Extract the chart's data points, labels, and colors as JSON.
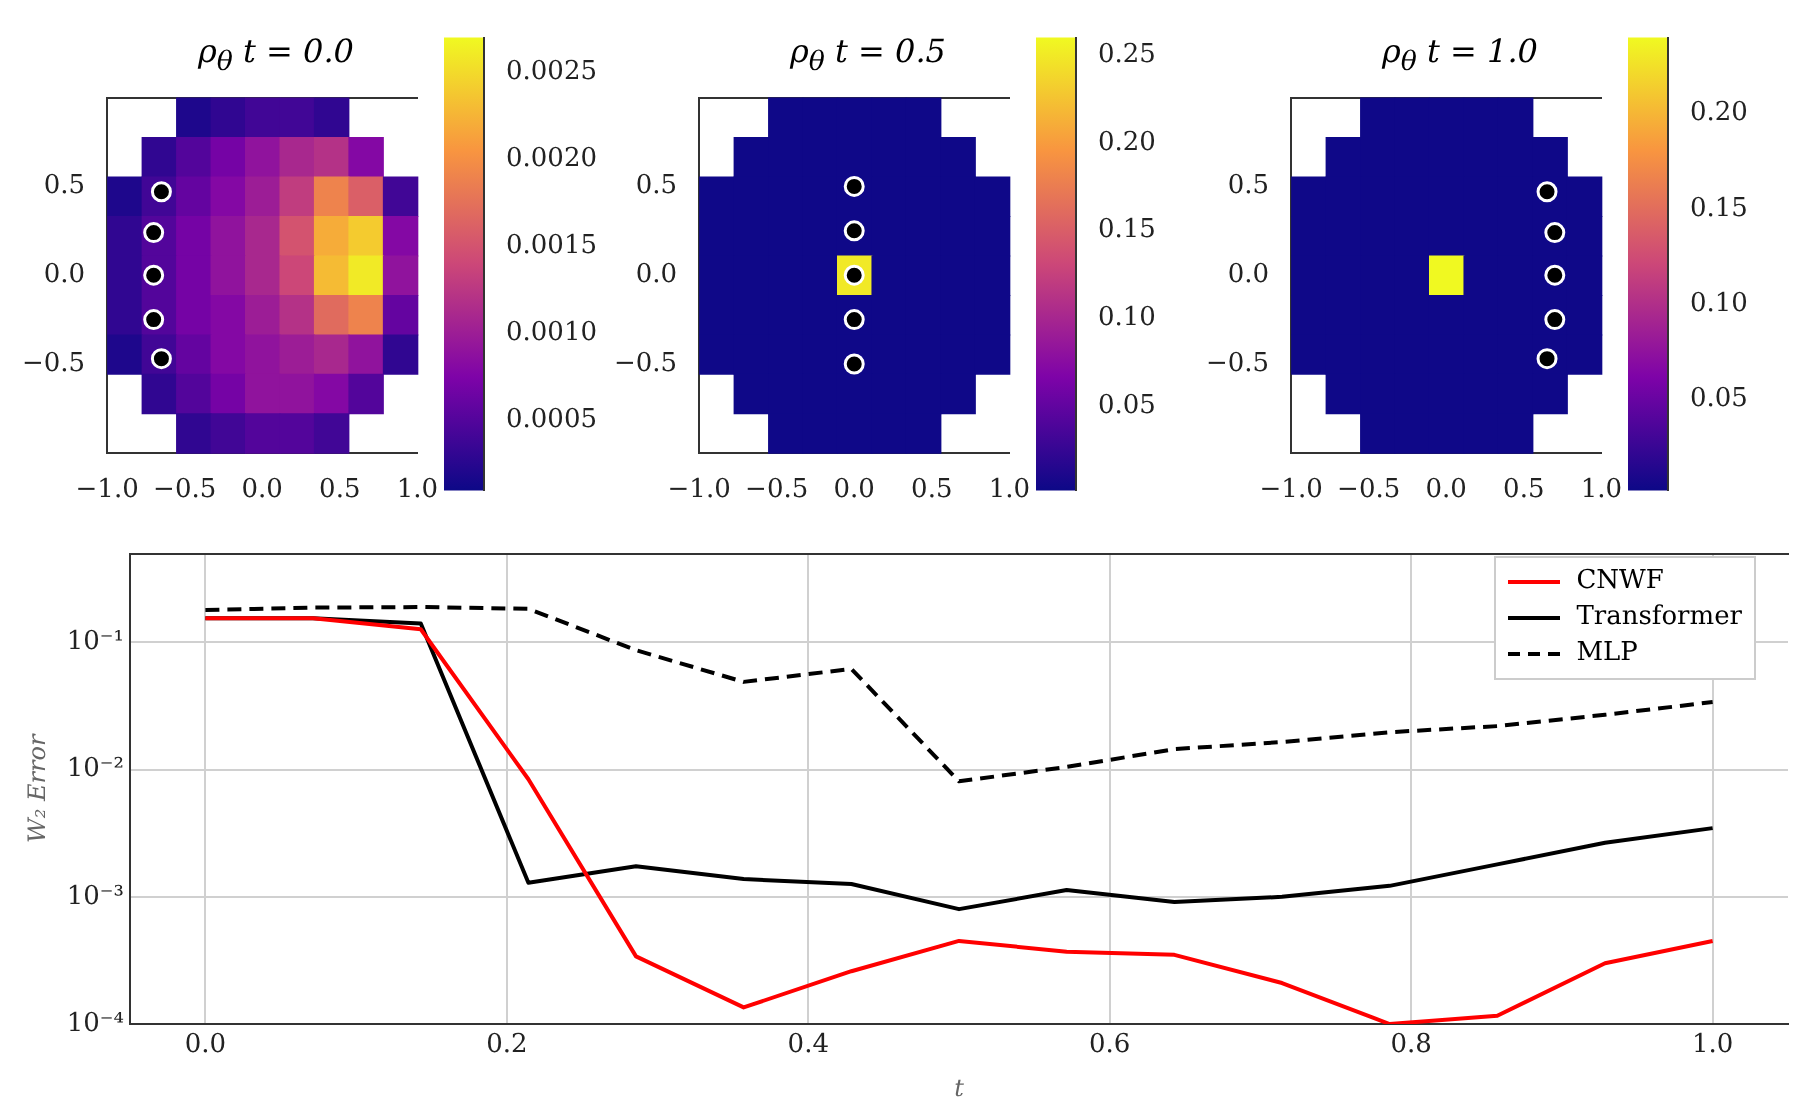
{
  "chart_data": [
    {
      "type": "heatmap",
      "title": "ρ$_{θ}$ t = 0.0",
      "xlim": [
        -1,
        1
      ],
      "xticks": [
        {
          "value": -1,
          "label": "−1.0"
        },
        {
          "value": -0.5,
          "label": "−0.5"
        },
        {
          "value": 0,
          "label": "0.0"
        },
        {
          "value": 0.5,
          "label": "0.5"
        },
        {
          "value": 1,
          "label": "1.0"
        }
      ],
      "ylim": [
        -1,
        1
      ],
      "yticks": [
        {
          "value": -0.5,
          "label": "−0.5"
        },
        {
          "value": 0,
          "label": "0.0"
        },
        {
          "value": 0.5,
          "label": "0.5"
        }
      ],
      "clim": [
        0.0001,
        0.0027
      ],
      "cticks": [
        0.0005,
        {
          "value": 0.001,
          "label": "0.0010"
        },
        0.0015,
        {
          "value": 0.002,
          "label": "0.0020"
        },
        0.0025
      ],
      "cells": [
        [
          null,
          null,
          0.0002,
          0.0003,
          0.0004,
          0.0004,
          0.0003,
          null,
          null
        ],
        [
          null,
          0.0003,
          0.0005,
          0.0007,
          0.0009,
          0.0011,
          0.0012,
          0.0008,
          null
        ],
        [
          0.0002,
          0.0004,
          0.0006,
          0.0008,
          0.001,
          0.0013,
          0.0019,
          0.0016,
          0.0004
        ],
        [
          0.0003,
          0.0005,
          0.0007,
          0.0009,
          0.0011,
          0.0015,
          0.0022,
          0.0024,
          0.0008
        ],
        [
          0.0003,
          0.0005,
          0.0007,
          0.0009,
          0.0011,
          0.0014,
          0.0023,
          0.0026,
          0.0009
        ],
        [
          0.0003,
          0.0005,
          0.0007,
          0.0008,
          0.001,
          0.0012,
          0.0017,
          0.0019,
          0.0006
        ],
        [
          0.0002,
          0.0004,
          0.0006,
          0.0008,
          0.0009,
          0.001,
          0.0011,
          0.0009,
          0.0003
        ],
        [
          null,
          0.0003,
          0.0005,
          0.0007,
          0.0009,
          0.0009,
          0.0008,
          0.0005,
          null
        ],
        [
          null,
          null,
          0.0003,
          0.0004,
          0.0005,
          0.0005,
          0.0004,
          null,
          null
        ]
      ],
      "marker": "circle",
      "series": [
        {
          "type": "scatter",
          "color": "#000000",
          "x": [
            -0.65,
            -0.7,
            -0.7,
            -0.7,
            -0.65
          ],
          "values": [
            0.47,
            0.24,
            0,
            -0.25,
            -0.47
          ]
        }
      ]
    },
    {
      "type": "heatmap",
      "title": "ρ$_{θ}$ t = 0.5",
      "xlim": [
        -1,
        1
      ],
      "xticks": [
        {
          "value": -1,
          "label": "−1.0"
        },
        {
          "value": -0.5,
          "label": "−0.5"
        },
        {
          "value": 0,
          "label": "0.0"
        },
        {
          "value": 0.5,
          "label": "0.5"
        },
        {
          "value": 1,
          "label": "1.0"
        }
      ],
      "ylim": [
        -1,
        1
      ],
      "yticks": [
        {
          "value": -0.5,
          "label": "−0.5"
        },
        {
          "value": 0,
          "label": "0.0"
        },
        {
          "value": 0.5,
          "label": "0.5"
        }
      ],
      "clim": [
        0.002,
        0.26
      ],
      "cticks": [
        0.05,
        {
          "value": 0.1,
          "label": "0.10"
        },
        0.15,
        {
          "value": 0.2,
          "label": "0.20"
        },
        0.25
      ],
      "cells": [
        [
          null,
          null,
          0.003,
          0.003,
          0.003,
          0.003,
          0.003,
          null,
          null
        ],
        [
          null,
          0.003,
          0.003,
          0.003,
          0.003,
          0.003,
          0.003,
          0.003,
          null
        ],
        [
          0.003,
          0.003,
          0.003,
          0.003,
          0.003,
          0.003,
          0.003,
          0.003,
          0.003
        ],
        [
          0.003,
          0.003,
          0.003,
          0.003,
          0.003,
          0.003,
          0.003,
          0.003,
          0.003
        ],
        [
          0.003,
          0.003,
          0.003,
          0.003,
          0.25,
          0.003,
          0.003,
          0.003,
          0.003
        ],
        [
          0.003,
          0.003,
          0.003,
          0.003,
          0.003,
          0.003,
          0.003,
          0.003,
          0.003
        ],
        [
          0.003,
          0.003,
          0.003,
          0.003,
          0.003,
          0.003,
          0.003,
          0.003,
          0.003
        ],
        [
          null,
          0.003,
          0.003,
          0.003,
          0.003,
          0.003,
          0.003,
          0.003,
          null
        ],
        [
          null,
          null,
          0.003,
          0.003,
          0.003,
          0.003,
          0.003,
          null,
          null
        ]
      ],
      "marker": "circle",
      "series": [
        {
          "type": "scatter",
          "color": "#000000",
          "x": [
            0,
            0,
            0,
            0,
            0
          ],
          "values": [
            0.5,
            0.25,
            0,
            -0.25,
            -0.5
          ]
        }
      ]
    },
    {
      "type": "heatmap",
      "title": "ρ$_{θ}$ t = 1.0",
      "xlim": [
        -1,
        1
      ],
      "xticks": [
        {
          "value": -1,
          "label": "−1.0"
        },
        {
          "value": -0.5,
          "label": "−0.5"
        },
        {
          "value": 0,
          "label": "0.0"
        },
        {
          "value": 0.5,
          "label": "0.5"
        },
        {
          "value": 1,
          "label": "1.0"
        }
      ],
      "ylim": [
        -1,
        1
      ],
      "yticks": [
        {
          "value": -0.5,
          "label": "−0.5"
        },
        {
          "value": 0,
          "label": "0.0"
        },
        {
          "value": 0.5,
          "label": "0.5"
        }
      ],
      "clim": [
        0.002,
        0.24
      ],
      "cticks": [
        0.05,
        {
          "value": 0.1,
          "label": "0.10"
        },
        0.15,
        {
          "value": 0.2,
          "label": "0.20"
        }
      ],
      "cells": [
        [
          null,
          null,
          0.003,
          0.003,
          0.003,
          0.003,
          0.003,
          null,
          null
        ],
        [
          null,
          0.003,
          0.003,
          0.003,
          0.003,
          0.003,
          0.003,
          0.003,
          null
        ],
        [
          0.003,
          0.003,
          0.003,
          0.003,
          0.003,
          0.003,
          0.003,
          0.003,
          0.003
        ],
        [
          0.003,
          0.003,
          0.003,
          0.003,
          0.003,
          0.003,
          0.003,
          0.003,
          0.003
        ],
        [
          0.003,
          0.003,
          0.003,
          0.003,
          0.24,
          0.003,
          0.003,
          0.003,
          0.003
        ],
        [
          0.003,
          0.003,
          0.003,
          0.003,
          0.003,
          0.003,
          0.003,
          0.003,
          0.003
        ],
        [
          0.003,
          0.003,
          0.003,
          0.003,
          0.003,
          0.003,
          0.003,
          0.003,
          0.003
        ],
        [
          null,
          0.003,
          0.003,
          0.003,
          0.003,
          0.003,
          0.003,
          0.003,
          null
        ],
        [
          null,
          null,
          0.003,
          0.003,
          0.003,
          0.003,
          0.003,
          null,
          null
        ]
      ],
      "marker": "circle",
      "series": [
        {
          "type": "scatter",
          "color": "#000000",
          "x": [
            0.65,
            0.7,
            0.7,
            0.7,
            0.65
          ],
          "values": [
            0.47,
            0.24,
            0,
            -0.25,
            -0.47
          ]
        }
      ]
    },
    {
      "type": "line",
      "xlabel": "t",
      "ylabel": "W₂ Error",
      "log": true,
      "grid": true,
      "legend": "top right",
      "x": [
        0,
        0.0714,
        0.1429,
        0.2143,
        0.2857,
        0.3571,
        0.4286,
        0.5,
        0.5714,
        0.6429,
        0.7143,
        0.7857,
        0.8571,
        0.9286,
        1
      ],
      "xlim": [
        -0.05,
        1.05
      ],
      "xticks": [
        {
          "value": 0,
          "label": "0.0"
        },
        0.2,
        0.4,
        0.6,
        0.8,
        {
          "value": 1,
          "label": "1.0"
        }
      ],
      "ylim": [
        0.0001,
        0.5
      ],
      "yticks": [
        {
          "value": 0.0001,
          "label": "10⁻⁴"
        },
        {
          "value": 0.001,
          "label": "10⁻³"
        },
        {
          "value": 0.01,
          "label": "10⁻²"
        },
        {
          "value": 0.1,
          "label": "10⁻¹"
        }
      ],
      "series": [
        {
          "name": "CNWF",
          "color": "#ff0000",
          "line_style": "solid",
          "values": [
            0.155,
            0.155,
            0.127,
            0.0084,
            0.00034,
            0.000135,
            0.00026,
            0.00045,
            0.00037,
            0.00035,
            0.00021,
            0.0001,
            0.000116,
            0.0003,
            0.00045
          ]
        },
        {
          "name": "Transformer",
          "color": "#000000",
          "line_style": "solid",
          "values": [
            0.155,
            0.155,
            0.141,
            0.00129,
            0.00174,
            0.00138,
            0.00126,
            0.0008,
            0.00113,
            0.00091,
            0.001,
            0.00122,
            0.0018,
            0.00266,
            0.00347
          ]
        },
        {
          "name": "MLP",
          "color": "#000000",
          "line_style": "dashed",
          "values": [
            0.18,
            0.188,
            0.19,
            0.184,
            0.087,
            0.049,
            0.062,
            0.0081,
            0.0105,
            0.0145,
            0.0165,
            0.0197,
            0.022,
            0.027,
            0.034
          ]
        }
      ]
    }
  ]
}
